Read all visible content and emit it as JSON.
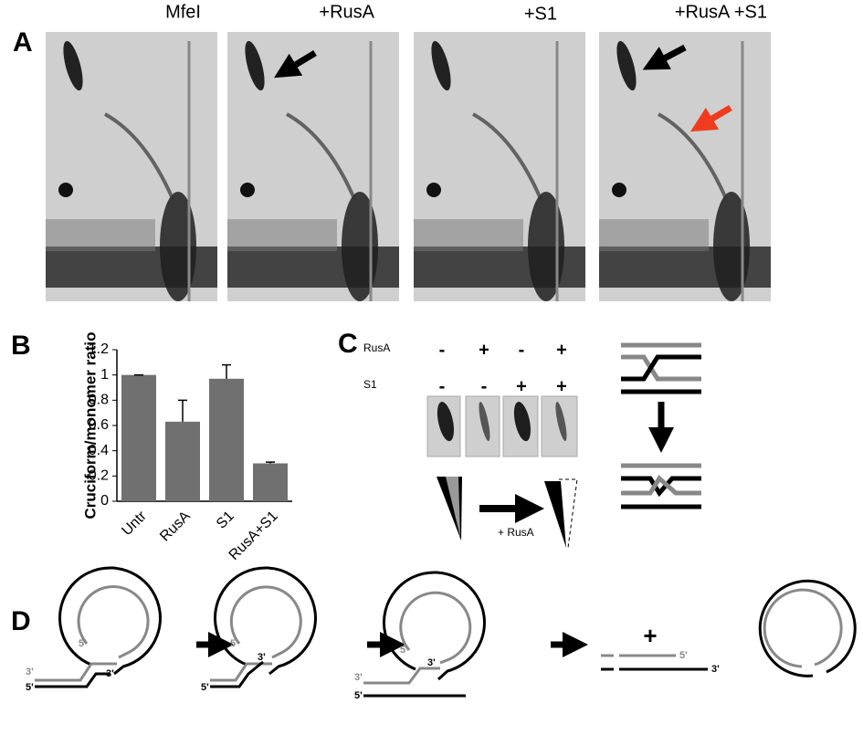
{
  "panel_a": {
    "label": "A",
    "lanes": [
      "MfeI",
      "+RusA",
      "+S1",
      "+RusA +S1"
    ]
  },
  "chart_data": {
    "type": "bar",
    "panel_label": "B",
    "y_label": "Cruciform/monomer ratio",
    "categories": [
      "Untr",
      "RusA",
      "S1",
      "RusA+S1"
    ],
    "values": [
      1,
      0.63,
      0.97,
      0.3
    ],
    "errors": [
      0,
      0.17,
      0.11,
      0.01
    ],
    "color": "#707070",
    "ylim": [
      0,
      1.2
    ],
    "yticks": [
      0,
      0.2,
      0.4,
      0.6,
      0.8,
      1,
      1.2
    ]
  },
  "panel_c": {
    "label": "C",
    "rows": [
      {
        "name": "RusA",
        "signs": [
          "-",
          "+",
          "-",
          "+"
        ]
      },
      {
        "name": "S1",
        "signs": [
          "-",
          "-",
          "+",
          "+"
        ]
      }
    ],
    "arrow_label": "+ RusA"
  },
  "panel_d": {
    "label": "D",
    "plus": "+",
    "steps": [
      [
        "5'",
        "3'",
        "3'",
        "5'"
      ],
      [
        "5'",
        "3'",
        "5'"
      ],
      [
        "5'",
        "3'",
        "3'",
        "5'"
      ],
      [
        "5'",
        "3'"
      ]
    ]
  }
}
